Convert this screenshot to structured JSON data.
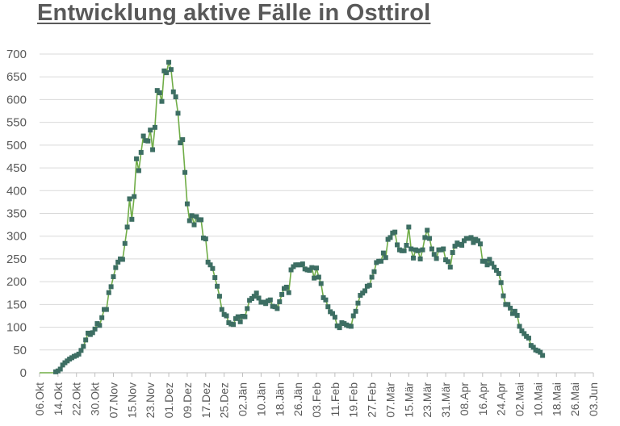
{
  "chart_data": {
    "type": "line",
    "title": "Entwicklung aktive Fälle in Osttirol",
    "xlabel": "",
    "ylabel": "",
    "ylim": [
      0,
      700
    ],
    "yticks": [
      0,
      50,
      100,
      150,
      200,
      250,
      300,
      350,
      400,
      450,
      500,
      550,
      600,
      650,
      700
    ],
    "grid": true,
    "legend": null,
    "x_start_date": "06.Okt",
    "x_end_date": "03.Jun",
    "x_tick_interval_days": 8,
    "xtick_labels": [
      "06.Okt",
      "14.Okt",
      "22.Okt",
      "30.Okt",
      "07.Nov",
      "15.Nov",
      "23.Nov",
      "01.Dez",
      "09.Dez",
      "17.Dez",
      "25.Dez",
      "02.Jän",
      "10.Jän",
      "18.Jän",
      "26.Jän",
      "03.Feb",
      "11.Feb",
      "19.Feb",
      "27.Feb",
      "07.Mär",
      "15.Mär",
      "23.Mär",
      "31.Mär",
      "08.Apr",
      "16.Apr",
      "24.Apr",
      "02.Mai",
      "10.Mai",
      "18.Mai",
      "26.Mai",
      "03.Jun"
    ],
    "series": [
      {
        "name": "Aktive Fälle",
        "line_color": "#70AD47",
        "marker_color": "#3D6E63",
        "marker": "square",
        "points": [
          [
            0,
            0
          ],
          [
            1,
            0
          ],
          [
            2,
            0
          ],
          [
            3,
            0
          ],
          [
            4,
            0
          ],
          [
            5,
            0
          ],
          [
            6,
            0
          ],
          [
            7,
            2
          ],
          [
            8,
            4
          ],
          [
            9,
            8
          ],
          [
            10,
            17
          ],
          [
            11,
            22
          ],
          [
            12,
            26
          ],
          [
            13,
            30
          ],
          [
            14,
            33
          ],
          [
            15,
            36
          ],
          [
            16,
            38
          ],
          [
            17,
            41
          ],
          [
            18,
            49
          ],
          [
            19,
            58
          ],
          [
            20,
            72
          ],
          [
            21,
            87
          ],
          [
            22,
            84
          ],
          [
            23,
            88
          ],
          [
            24,
            96
          ],
          [
            25,
            108
          ],
          [
            26,
            104
          ],
          [
            27,
            121
          ],
          [
            28,
            139
          ],
          [
            29,
            139
          ],
          [
            30,
            176
          ],
          [
            31,
            189
          ],
          [
            32,
            211
          ],
          [
            33,
            231
          ],
          [
            34,
            243
          ],
          [
            35,
            250
          ],
          [
            36,
            249
          ],
          [
            37,
            284
          ],
          [
            38,
            320
          ],
          [
            39,
            382
          ],
          [
            40,
            337
          ],
          [
            41,
            387
          ],
          [
            42,
            470
          ],
          [
            43,
            444
          ],
          [
            44,
            484
          ],
          [
            45,
            520
          ],
          [
            46,
            510
          ],
          [
            47,
            509
          ],
          [
            48,
            533
          ],
          [
            49,
            490
          ],
          [
            50,
            539
          ],
          [
            51,
            620
          ],
          [
            52,
            615
          ],
          [
            53,
            596
          ],
          [
            54,
            663
          ],
          [
            55,
            659
          ],
          [
            56,
            682
          ],
          [
            57,
            666
          ],
          [
            58,
            617
          ],
          [
            59,
            606
          ],
          [
            60,
            570
          ],
          [
            61,
            505
          ],
          [
            62,
            512
          ],
          [
            63,
            440
          ],
          [
            64,
            371
          ],
          [
            65,
            334
          ],
          [
            66,
            345
          ],
          [
            67,
            325
          ],
          [
            68,
            343
          ],
          [
            69,
            336
          ],
          [
            70,
            336
          ],
          [
            71,
            296
          ],
          [
            72,
            294
          ],
          [
            73,
            243
          ],
          [
            74,
            237
          ],
          [
            75,
            229
          ],
          [
            76,
            209
          ],
          [
            77,
            190
          ],
          [
            78,
            168
          ],
          [
            79,
            139
          ],
          [
            80,
            128
          ],
          [
            81,
            125
          ],
          [
            82,
            110
          ],
          [
            83,
            107
          ],
          [
            84,
            106
          ],
          [
            85,
            119
          ],
          [
            86,
            123
          ],
          [
            87,
            112
          ],
          [
            88,
            124
          ],
          [
            89,
            123
          ],
          [
            90,
            141
          ],
          [
            91,
            159
          ],
          [
            92,
            163
          ],
          [
            93,
            168
          ],
          [
            94,
            175
          ],
          [
            95,
            164
          ],
          [
            96,
            155
          ],
          [
            97,
            155
          ],
          [
            98,
            152
          ],
          [
            99,
            158
          ],
          [
            100,
            160
          ],
          [
            101,
            146
          ],
          [
            102,
            145
          ],
          [
            103,
            141
          ],
          [
            104,
            156
          ],
          [
            105,
            172
          ],
          [
            106,
            185
          ],
          [
            107,
            188
          ],
          [
            108,
            176
          ],
          [
            109,
            226
          ],
          [
            110,
            233
          ],
          [
            111,
            237
          ],
          [
            112,
            237
          ],
          [
            113,
            237
          ],
          [
            114,
            239
          ],
          [
            115,
            228
          ],
          [
            116,
            226
          ],
          [
            117,
            225
          ],
          [
            118,
            231
          ],
          [
            119,
            208
          ],
          [
            120,
            230
          ],
          [
            121,
            210
          ],
          [
            122,
            196
          ],
          [
            123,
            165
          ],
          [
            124,
            160
          ],
          [
            125,
            145
          ],
          [
            126,
            134
          ],
          [
            127,
            130
          ],
          [
            128,
            122
          ],
          [
            129,
            103
          ],
          [
            130,
            99
          ],
          [
            131,
            110
          ],
          [
            132,
            108
          ],
          [
            133,
            105
          ],
          [
            134,
            103
          ],
          [
            135,
            102
          ],
          [
            136,
            125
          ],
          [
            137,
            135
          ],
          [
            138,
            153
          ],
          [
            139,
            170
          ],
          [
            140,
            175
          ],
          [
            141,
            180
          ],
          [
            142,
            190
          ],
          [
            143,
            192
          ],
          [
            144,
            210
          ],
          [
            145,
            222
          ],
          [
            146,
            242
          ],
          [
            147,
            245
          ],
          [
            148,
            245
          ],
          [
            149,
            263
          ],
          [
            150,
            253
          ],
          [
            151,
            293
          ],
          [
            152,
            297
          ],
          [
            153,
            307
          ],
          [
            154,
            309
          ],
          [
            155,
            281
          ],
          [
            156,
            270
          ],
          [
            157,
            268
          ],
          [
            158,
            268
          ],
          [
            159,
            280
          ],
          [
            160,
            320
          ],
          [
            161,
            272
          ],
          [
            162,
            252
          ],
          [
            163,
            270
          ],
          [
            164,
            268
          ],
          [
            165,
            250
          ],
          [
            166,
            270
          ],
          [
            167,
            297
          ],
          [
            168,
            313
          ],
          [
            169,
            295
          ],
          [
            170,
            272
          ],
          [
            171,
            260
          ],
          [
            172,
            251
          ],
          [
            173,
            270
          ],
          [
            174,
            270
          ],
          [
            175,
            272
          ],
          [
            176,
            248
          ],
          [
            177,
            244
          ],
          [
            178,
            232
          ],
          [
            179,
            264
          ],
          [
            180,
            278
          ],
          [
            181,
            285
          ],
          [
            182,
            282
          ],
          [
            183,
            280
          ],
          [
            184,
            290
          ],
          [
            185,
            295
          ],
          [
            186,
            295
          ],
          [
            187,
            297
          ],
          [
            188,
            286
          ],
          [
            189,
            293
          ],
          [
            190,
            290
          ],
          [
            191,
            283
          ],
          [
            192,
            245
          ],
          [
            193,
            245
          ],
          [
            194,
            237
          ],
          [
            195,
            249
          ],
          [
            196,
            240
          ],
          [
            197,
            232
          ],
          [
            198,
            225
          ],
          [
            199,
            218
          ],
          [
            200,
            198
          ],
          [
            201,
            169
          ],
          [
            202,
            150
          ],
          [
            203,
            150
          ],
          [
            204,
            142
          ],
          [
            205,
            130
          ],
          [
            206,
            135
          ],
          [
            207,
            126
          ],
          [
            208,
            102
          ],
          [
            209,
            92
          ],
          [
            210,
            86
          ],
          [
            211,
            80
          ],
          [
            212,
            76
          ],
          [
            213,
            60
          ],
          [
            214,
            56
          ],
          [
            215,
            50
          ],
          [
            216,
            48
          ],
          [
            217,
            45
          ],
          [
            218,
            38
          ]
        ]
      }
    ]
  }
}
